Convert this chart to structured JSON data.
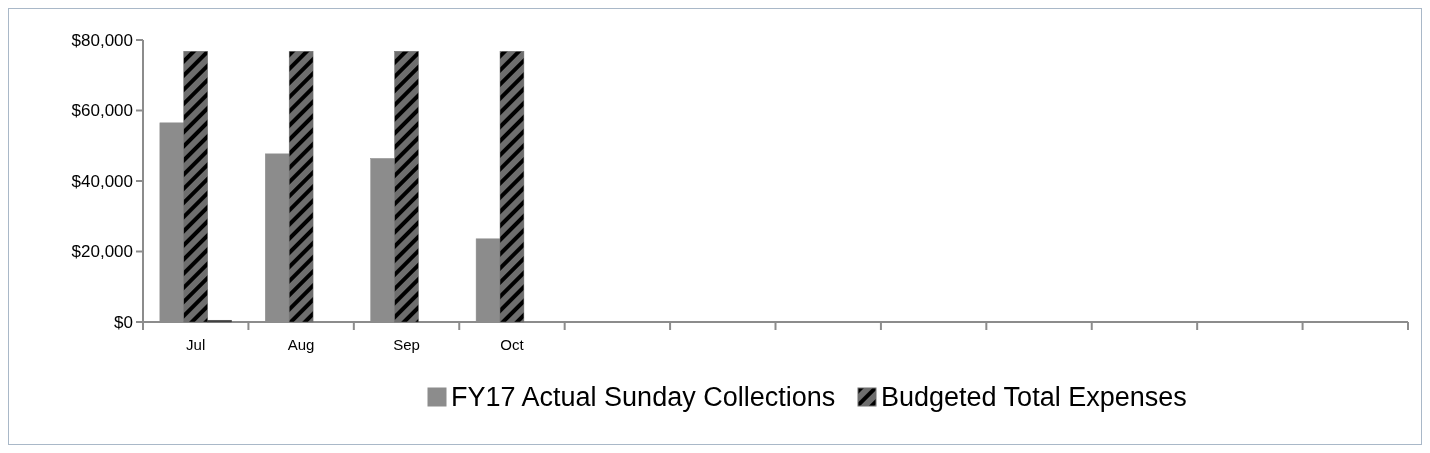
{
  "chart_data": {
    "type": "bar",
    "categories": [
      "Jul",
      "Aug",
      "Sep",
      "Oct",
      null,
      null,
      null,
      null,
      null,
      null,
      null,
      null
    ],
    "series": [
      {
        "name": "FY17 Actual Sunday Collections",
        "color": "#8c8c8c",
        "values": [
          56500,
          47700,
          46400,
          23600,
          null,
          null,
          null,
          null,
          null,
          null,
          null,
          null
        ]
      },
      {
        "name": "Budgeted Total Expenses",
        "color": "#6e6e6e",
        "values": [
          76800,
          76800,
          76800,
          76800,
          null,
          null,
          null,
          null,
          null,
          null,
          null,
          null
        ]
      },
      {
        "color": "#404040",
        "values": [
          500,
          null,
          null,
          null,
          null,
          null,
          null,
          null,
          null,
          null,
          null,
          null
        ]
      }
    ],
    "ylim": [
      0,
      80000
    ],
    "yticks": [
      {
        "value": 0,
        "label": "$0"
      },
      {
        "value": 20000,
        "label": "$20,000"
      },
      {
        "value": 40000,
        "label": "$40,000"
      },
      {
        "value": 60000,
        "label": "$60,000"
      },
      {
        "value": 80000,
        "label": "$80,000"
      }
    ],
    "grid": false,
    "legend": "bottom"
  }
}
